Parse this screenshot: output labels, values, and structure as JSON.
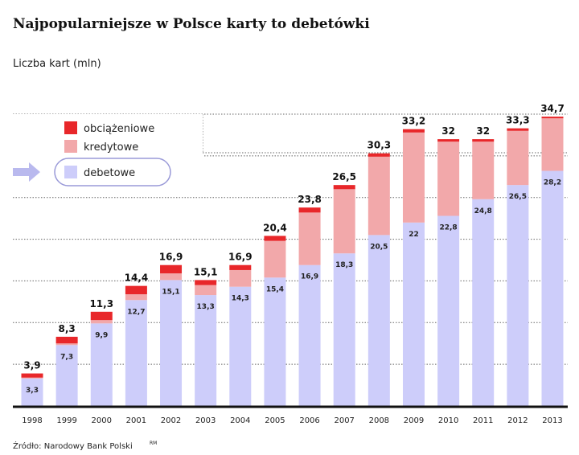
{
  "title": "Najpopularniejsze w Polsce karty to debetówki",
  "subtitle": "Liczba kart (mln)",
  "source": "Źródło: Narodowy Bank Polski",
  "credit": "RM",
  "colors": {
    "obciazeniowe": "#e8272a",
    "kredytowe": "#f2a8aa",
    "debetowe": "#cdcdfa"
  },
  "chart_data": {
    "type": "bar",
    "stacked": true,
    "ylim": [
      0,
      35
    ],
    "grid": true,
    "legend_position": "top-left",
    "categories": [
      "1998",
      "1999",
      "2000",
      "2001",
      "2002",
      "2003",
      "2004",
      "2005",
      "2006",
      "2007",
      "2008",
      "2009",
      "2010",
      "2011",
      "2012",
      "2013"
    ],
    "totals": [
      "3,9",
      "8,3",
      "11,3",
      "14,4",
      "16,9",
      "15,1",
      "16,9",
      "20,4",
      "23,8",
      "26,5",
      "30,3",
      "33,2",
      "32",
      "32",
      "33,3",
      "34,7"
    ],
    "debet_labels": [
      "3,3",
      "7,3",
      "9,9",
      "12,7",
      "15,1",
      "13,3",
      "14,3",
      "15,4",
      "16,9",
      "18,3",
      "20,5",
      "22",
      "22,8",
      "24,8",
      "26,5",
      "28,2"
    ],
    "series": [
      {
        "name": "debetowe",
        "values": [
          3.3,
          7.3,
          9.9,
          12.7,
          15.1,
          13.3,
          14.3,
          15.4,
          16.9,
          18.3,
          20.5,
          22,
          22.8,
          24.8,
          26.5,
          28.2
        ]
      },
      {
        "name": "kredytowe",
        "values": [
          0.1,
          0.2,
          0.4,
          0.7,
          0.8,
          1.2,
          2.0,
          4.4,
          6.3,
          7.7,
          9.4,
          10.8,
          8.9,
          6.9,
          6.5,
          6.3
        ]
      },
      {
        "name": "obciążeniowe",
        "values": [
          0.5,
          0.8,
          1.0,
          1.0,
          1.0,
          0.6,
          0.6,
          0.6,
          0.6,
          0.5,
          0.4,
          0.4,
          0.3,
          0.3,
          0.3,
          0.2
        ]
      }
    ]
  }
}
